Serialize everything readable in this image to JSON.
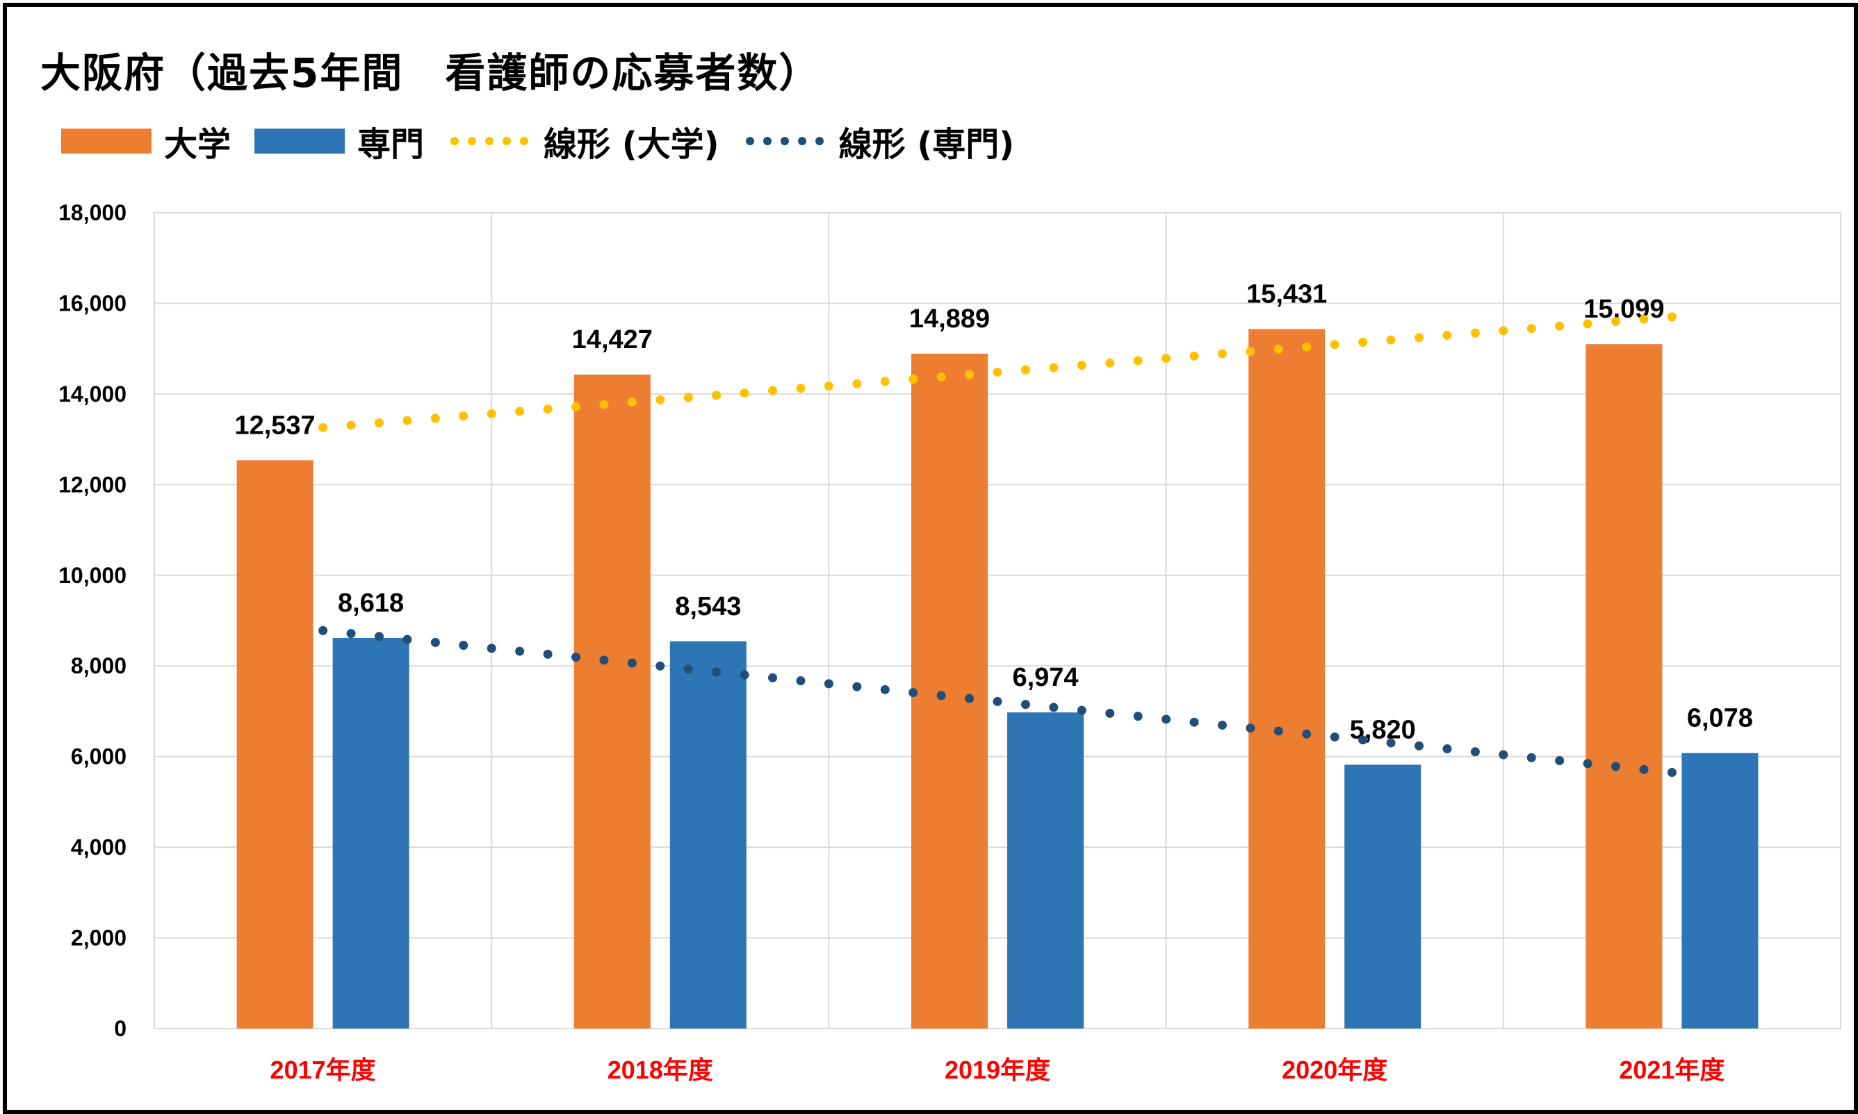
{
  "title": "大阪府（過去5年間　看護師の応募者数）",
  "colors": {
    "univ": "#ed7d31",
    "senmon": "#2e75b6",
    "trend_univ": "#ffc000",
    "trend_senmon": "#1f4e79",
    "category_label": "#ff0000",
    "grid": "#d9d9d9"
  },
  "legend": [
    {
      "label": "大学",
      "kind": "bar",
      "color": "#ed7d31"
    },
    {
      "label": "専門",
      "kind": "bar",
      "color": "#2e75b6"
    },
    {
      "label": "線形 (大学)",
      "kind": "dotted-line",
      "color": "#ffc000"
    },
    {
      "label": "線形 (専門)",
      "kind": "dotted-line",
      "color": "#1f4e79"
    }
  ],
  "chart_data": {
    "type": "bar",
    "title": "大阪府（過去5年間　看護師の応募者数）",
    "categories": [
      "2017年度",
      "2018年度",
      "2019年度",
      "2020年度",
      "2021年度"
    ],
    "series": [
      {
        "name": "大学",
        "values": [
          12537,
          14427,
          14889,
          15431,
          15099
        ],
        "labels": [
          "12,537",
          "14,427",
          "14,889",
          "15,431",
          "15,099"
        ]
      },
      {
        "name": "専門",
        "values": [
          8618,
          8543,
          6974,
          5820,
          6078
        ],
        "labels": [
          "8,618",
          "8,543",
          "6,974",
          "5,820",
          "6,078"
        ]
      }
    ],
    "trendlines": [
      {
        "name": "線形 (大学)",
        "type": "linear",
        "start": 13260,
        "end": 15700
      },
      {
        "name": "線形 (専門)",
        "type": "linear",
        "start": 8780,
        "end": 5650
      }
    ],
    "ylim": [
      0,
      18000
    ],
    "yticks": [
      "0",
      "2,000",
      "4,000",
      "6,000",
      "8,000",
      "10,000",
      "12,000",
      "14,000",
      "16,000",
      "18,000"
    ],
    "ytick_values": [
      0,
      2000,
      4000,
      6000,
      8000,
      10000,
      12000,
      14000,
      16000,
      18000
    ],
    "grid": true,
    "legend_position": "top-left",
    "xlabel": "",
    "ylabel": ""
  }
}
